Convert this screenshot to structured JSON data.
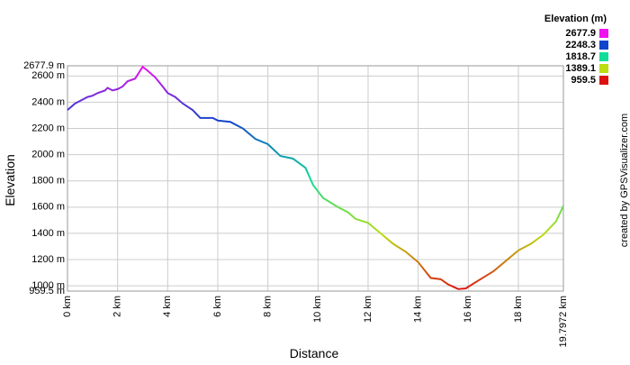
{
  "chart_data": {
    "type": "line",
    "x_label": "Distance",
    "y_label": "Elevation",
    "credit": "created by GPSVisualizer.com",
    "xlim": [
      0,
      19.7972
    ],
    "xticks": [
      {
        "value": 0,
        "label": "0 km"
      },
      {
        "value": 2,
        "label": "2 km"
      },
      {
        "value": 4,
        "label": "4 km"
      },
      {
        "value": 6,
        "label": "6 km"
      },
      {
        "value": 8,
        "label": "8 km"
      },
      {
        "value": 10,
        "label": "10 km"
      },
      {
        "value": 12,
        "label": "12 km"
      },
      {
        "value": 14,
        "label": "14 km"
      },
      {
        "value": 16,
        "label": "16 km"
      },
      {
        "value": 18,
        "label": "18 km"
      },
      {
        "value": 19.7972,
        "label": "19.7972 km"
      }
    ],
    "ylim": [
      959.5,
      2677.9
    ],
    "yticks": [
      {
        "value": 959.5,
        "label": "959.5 m"
      },
      {
        "value": 1000,
        "label": "1000 m"
      },
      {
        "value": 1200,
        "label": "1200 m"
      },
      {
        "value": 1400,
        "label": "1400 m"
      },
      {
        "value": 1600,
        "label": "1600 m"
      },
      {
        "value": 1800,
        "label": "1800 m"
      },
      {
        "value": 2000,
        "label": "2000 m"
      },
      {
        "value": 2200,
        "label": "2200 m"
      },
      {
        "value": 2400,
        "label": "2400 m"
      },
      {
        "value": 2600,
        "label": "2600 m"
      },
      {
        "value": 2677.9,
        "label": "2677.9 m"
      }
    ],
    "grid": true,
    "legend": {
      "title": "Elevation (m)",
      "stops": [
        {
          "value": 2677.9,
          "color": "#ee11ee"
        },
        {
          "value": 2248.3,
          "color": "#1144cc"
        },
        {
          "value": 1818.7,
          "color": "#11dd99"
        },
        {
          "value": 1389.1,
          "color": "#bbdd11"
        },
        {
          "value": 959.5,
          "color": "#dd1111"
        }
      ]
    },
    "x": [
      0,
      0.3,
      0.5,
      0.8,
      1.0,
      1.2,
      1.5,
      1.6,
      1.8,
      2.0,
      2.2,
      2.4,
      2.7,
      3.0,
      3.2,
      3.5,
      3.8,
      4.0,
      4.3,
      4.6,
      5.0,
      5.3,
      5.8,
      6.0,
      6.5,
      7.0,
      7.5,
      8.0,
      8.5,
      9.0,
      9.5,
      9.8,
      10.2,
      10.8,
      11.2,
      11.5,
      12.0,
      12.5,
      13.0,
      13.5,
      14.0,
      14.5,
      14.9,
      15.2,
      15.6,
      15.9,
      16.4,
      17.0,
      17.5,
      18.0,
      18.5,
      19.0,
      19.5,
      19.8
    ],
    "series": [
      {
        "name": "Elevation",
        "values": [
          2340,
          2390,
          2410,
          2440,
          2450,
          2470,
          2490,
          2510,
          2490,
          2500,
          2520,
          2560,
          2580,
          2670,
          2640,
          2590,
          2520,
          2470,
          2440,
          2390,
          2340,
          2280,
          2280,
          2260,
          2250,
          2200,
          2120,
          2080,
          1990,
          1970,
          1900,
          1770,
          1670,
          1600,
          1560,
          1510,
          1480,
          1400,
          1320,
          1260,
          1180,
          1060,
          1050,
          1010,
          975,
          980,
          1040,
          1110,
          1190,
          1270,
          1320,
          1390,
          1490,
          1610
        ]
      }
    ]
  }
}
